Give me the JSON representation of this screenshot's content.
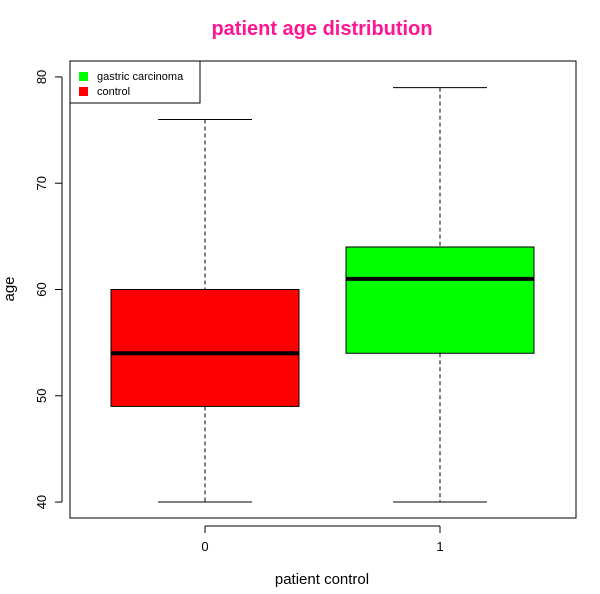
{
  "chart_data": {
    "type": "box",
    "title": "patient age distribution",
    "title_color": "#ff1493",
    "xlabel": "patient control",
    "ylabel": "age",
    "ylim": [
      38.5,
      81.5
    ],
    "yticks": [
      40,
      50,
      60,
      70,
      80
    ],
    "categories": [
      "0",
      "1"
    ],
    "boxes": [
      {
        "category": "0",
        "min": 40,
        "q1": 49,
        "median": 54,
        "q3": 60,
        "max": 76,
        "color": "#ff0000"
      },
      {
        "category": "1",
        "min": 40,
        "q1": 54,
        "median": 61,
        "q3": 64,
        "max": 79,
        "color": "#00ff00"
      }
    ],
    "legend": {
      "position": "top-left",
      "entries": [
        {
          "label": "gastric carcinoma",
          "color": "#00ff00"
        },
        {
          "label": "control",
          "color": "#ff0000"
        }
      ]
    },
    "grid": false
  }
}
